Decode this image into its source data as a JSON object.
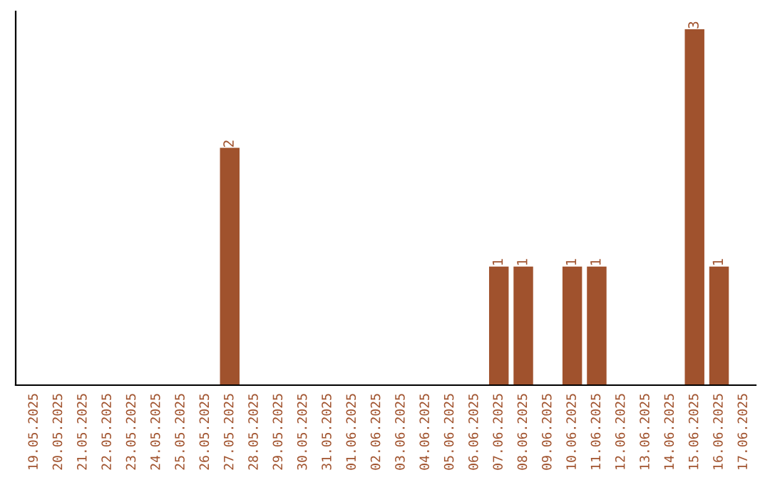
{
  "chart_data": {
    "type": "bar",
    "categories": [
      "19.05.2025",
      "20.05.2025",
      "21.05.2025",
      "22.05.2025",
      "23.05.2025",
      "24.05.2025",
      "25.05.2025",
      "26.05.2025",
      "27.05.2025",
      "28.05.2025",
      "29.05.2025",
      "30.05.2025",
      "31.05.2025",
      "01.06.2025",
      "02.06.2025",
      "03.06.2025",
      "04.06.2025",
      "05.06.2025",
      "06.06.2025",
      "07.06.2025",
      "08.06.2025",
      "09.06.2025",
      "10.06.2025",
      "11.06.2025",
      "12.06.2025",
      "13.06.2025",
      "14.06.2025",
      "15.06.2025",
      "16.06.2025",
      "17.06.2025"
    ],
    "values": [
      0,
      0,
      0,
      0,
      0,
      0,
      0,
      0,
      2,
      0,
      0,
      0,
      0,
      0,
      0,
      0,
      0,
      0,
      0,
      1,
      1,
      0,
      1,
      1,
      0,
      0,
      0,
      3,
      1,
      0
    ],
    "value_labels": [
      null,
      null,
      null,
      null,
      null,
      null,
      null,
      null,
      "2",
      null,
      null,
      null,
      null,
      null,
      null,
      null,
      null,
      null,
      null,
      "1",
      "1",
      null,
      "1",
      "1",
      null,
      null,
      null,
      "3",
      "1",
      null
    ],
    "color": "#a0522d",
    "tick_labels": "x",
    "grid": false
  }
}
